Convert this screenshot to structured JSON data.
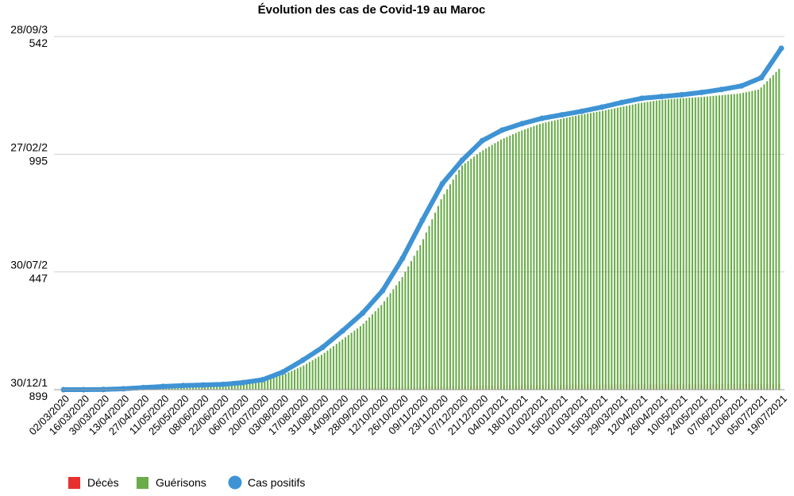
{
  "chart_data": {
    "type": "bar",
    "title": "Évolution des cas de Covid-19 au Maroc",
    "xlabel": "",
    "ylabel": "",
    "y_tick_labels": [
      {
        "line1": "30/12/1",
        "line2": "899"
      },
      {
        "line1": "30/07/2",
        "line2": "447"
      },
      {
        "line1": "27/02/2",
        "line2": "995"
      },
      {
        "line1": "28/09/3",
        "line2": "542"
      }
    ],
    "x_tick_labels": [
      "02/03/2020",
      "16/03/2020",
      "30/03/2020",
      "13/04/2020",
      "27/04/2020",
      "11/05/2020",
      "25/05/2020",
      "08/06/2020",
      "22/06/2020",
      "06/07/2020",
      "20/07/2020",
      "03/08/2020",
      "17/08/2020",
      "31/08/2020",
      "14/09/2020",
      "28/09/2020",
      "12/10/2020",
      "26/10/2020",
      "09/11/2020",
      "23/11/2020",
      "07/12/2020",
      "21/12/2020",
      "04/01/2021",
      "18/01/2021",
      "01/02/2021",
      "15/02/2021",
      "01/03/2021",
      "15/03/2021",
      "29/03/2021",
      "12/04/2021",
      "26/04/2021",
      "10/05/2021",
      "24/05/2021",
      "07/06/2021",
      "21/06/2021",
      "05/07/2021",
      "19/07/2021"
    ],
    "ylim": [
      0,
      600000
    ],
    "grid": true,
    "legend_position": "bottom-left",
    "series": [
      {
        "name": "Décès",
        "kind": "bar",
        "color": "#e8312f",
        "values": [
          0,
          0,
          0,
          0,
          0,
          0,
          20,
          100,
          200,
          300,
          400,
          700,
          1200,
          1800,
          2400,
          3000,
          3700,
          4400,
          5200,
          5900,
          6400,
          6900,
          7200,
          7600,
          8000,
          8300,
          8500,
          8700,
          8800,
          8900,
          9000,
          9100,
          9200,
          9300,
          9400,
          9500,
          9700
        ]
      },
      {
        "name": "Guérisons",
        "kind": "bar",
        "color": "#6aac4a",
        "values": [
          0,
          0,
          10,
          100,
          1000,
          2500,
          5000,
          7000,
          9000,
          12000,
          17000,
          25000,
          40000,
          60000,
          85000,
          110000,
          145000,
          190000,
          250000,
          325000,
          380000,
          405000,
          425000,
          440000,
          452000,
          460000,
          467000,
          473000,
          480000,
          487000,
          492000,
          495000,
          497000,
          500000,
          503000,
          510000,
          545000
        ]
      },
      {
        "name": "Cas positifs",
        "kind": "line",
        "color": "#3e93d4",
        "values": [
          0,
          0,
          300,
          1500,
          3500,
          5500,
          7000,
          8000,
          9000,
          12000,
          17000,
          30000,
          50000,
          72000,
          100000,
          130000,
          168000,
          223000,
          288000,
          350000,
          390000,
          423000,
          441000,
          452000,
          461000,
          467000,
          473000,
          480000,
          488000,
          495000,
          498000,
          501000,
          505000,
          510000,
          516000,
          530000,
          580000
        ]
      }
    ]
  }
}
